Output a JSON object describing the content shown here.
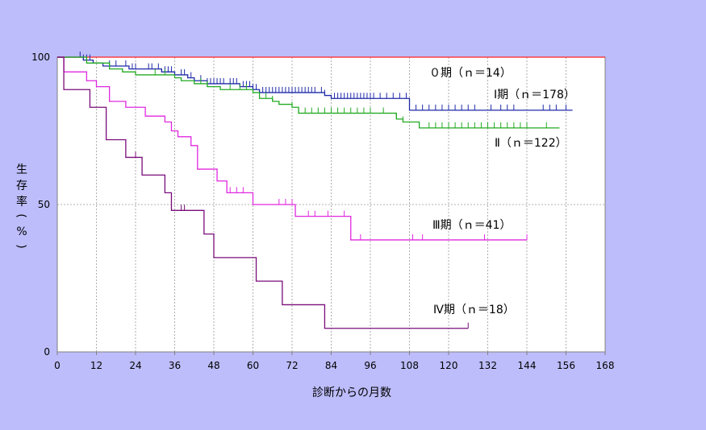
{
  "chart_data": {
    "type": "line",
    "title": "",
    "xlabel": "診断からの月数",
    "ylabel": "生存率(%)",
    "xlim": [
      0,
      168
    ],
    "ylim": [
      0,
      100
    ],
    "x_ticks": [
      0,
      12,
      24,
      36,
      48,
      60,
      72,
      84,
      96,
      108,
      120,
      132,
      144,
      156,
      168
    ],
    "y_ticks": [
      0,
      50,
      100
    ],
    "grid": true,
    "step": true,
    "series": [
      {
        "name": "０期（ｎ＝14）",
        "color": "#ff2020",
        "points": [
          [
            0,
            100
          ],
          [
            168,
            100
          ]
        ],
        "censored": []
      },
      {
        "name": "Ⅰ期（ｎ＝178）",
        "color": "#1f2aa8",
        "points": [
          [
            0,
            100
          ],
          [
            8,
            99
          ],
          [
            11,
            98
          ],
          [
            14,
            97
          ],
          [
            22,
            96
          ],
          [
            32,
            95
          ],
          [
            36,
            94
          ],
          [
            40,
            93
          ],
          [
            42,
            92
          ],
          [
            46,
            91
          ],
          [
            56,
            90
          ],
          [
            60,
            89
          ],
          [
            62,
            88
          ],
          [
            82,
            87
          ],
          [
            84,
            86
          ],
          [
            108,
            82
          ],
          [
            158,
            82
          ]
        ],
        "censored": [
          7,
          8,
          9,
          10,
          16,
          18,
          21,
          23,
          24,
          28,
          29,
          31,
          33,
          34,
          35,
          38,
          39,
          41,
          44,
          46,
          47,
          48,
          49,
          50,
          51,
          53,
          54,
          55,
          57,
          58,
          59,
          60,
          61,
          63,
          64,
          65,
          66,
          67,
          68,
          69,
          70,
          71,
          72,
          73,
          74,
          75,
          76,
          77,
          78,
          79,
          81,
          82,
          85,
          86,
          87,
          88,
          89,
          90,
          91,
          92,
          93,
          94,
          95,
          96,
          97,
          99,
          101,
          103,
          105,
          107,
          110,
          112,
          114,
          116,
          118,
          120,
          122,
          124,
          126,
          128,
          133,
          136,
          138,
          140,
          149,
          151,
          153,
          156
        ]
      },
      {
        "name": "Ⅱ（ｎ＝122）",
        "color": "#22aa22",
        "points": [
          [
            0,
            100
          ],
          [
            9,
            98
          ],
          [
            16,
            96
          ],
          [
            20,
            95
          ],
          [
            24,
            94
          ],
          [
            36,
            93
          ],
          [
            38,
            92
          ],
          [
            42,
            91
          ],
          [
            46,
            90
          ],
          [
            50,
            89
          ],
          [
            60,
            88
          ],
          [
            62,
            86
          ],
          [
            66,
            85
          ],
          [
            68,
            84
          ],
          [
            72,
            83
          ],
          [
            74,
            81
          ],
          [
            104,
            79
          ],
          [
            106,
            78
          ],
          [
            111,
            76
          ],
          [
            154,
            76
          ]
        ],
        "censored": [
          30,
          33,
          44,
          46,
          53,
          56,
          58,
          64,
          66,
          72,
          74,
          76,
          78,
          80,
          82,
          84,
          86,
          88,
          90,
          92,
          94,
          96,
          100,
          104,
          106,
          114,
          116,
          118,
          120,
          122,
          124,
          126,
          128,
          130,
          132,
          134,
          136,
          138,
          140,
          142,
          144,
          150
        ]
      },
      {
        "name": "Ⅲ期（ｎ＝41）",
        "color": "#e028e0",
        "points": [
          [
            0,
            100
          ],
          [
            2,
            95
          ],
          [
            9,
            92
          ],
          [
            12,
            90
          ],
          [
            16,
            85
          ],
          [
            21,
            83
          ],
          [
            27,
            80
          ],
          [
            33,
            78
          ],
          [
            35,
            75
          ],
          [
            37,
            73
          ],
          [
            41,
            70
          ],
          [
            43,
            62
          ],
          [
            49,
            58
          ],
          [
            52,
            54
          ],
          [
            60,
            50
          ],
          [
            73,
            46
          ],
          [
            90,
            38
          ],
          [
            144,
            38
          ]
        ],
        "censored": [
          53,
          55,
          57,
          68,
          70,
          72,
          77,
          79,
          83,
          88,
          93,
          109,
          112,
          131,
          144
        ]
      },
      {
        "name": "Ⅳ期（ｎ＝18）",
        "color": "#7a0c7a",
        "points": [
          [
            0,
            100
          ],
          [
            2,
            89
          ],
          [
            10,
            83
          ],
          [
            15,
            72
          ],
          [
            21,
            66
          ],
          [
            26,
            60
          ],
          [
            33,
            54
          ],
          [
            35,
            48
          ],
          [
            45,
            40
          ],
          [
            48,
            32
          ],
          [
            61,
            24
          ],
          [
            69,
            16
          ],
          [
            82,
            8
          ],
          [
            126,
            8
          ]
        ],
        "censored": [
          24,
          38,
          39,
          126
        ]
      }
    ]
  },
  "labels": {
    "stage0": "０期（ｎ＝14）",
    "stage1": "Ⅰ期（ｎ＝178）",
    "stage2": "Ⅱ（ｎ＝122）",
    "stage3": "Ⅲ期（ｎ＝41）",
    "stage4": "Ⅳ期（ｎ＝18）"
  },
  "axis": {
    "xlabel": "診断からの月数",
    "ylabel_chars": [
      "生",
      "存",
      "率",
      "(",
      "%",
      ")"
    ]
  }
}
